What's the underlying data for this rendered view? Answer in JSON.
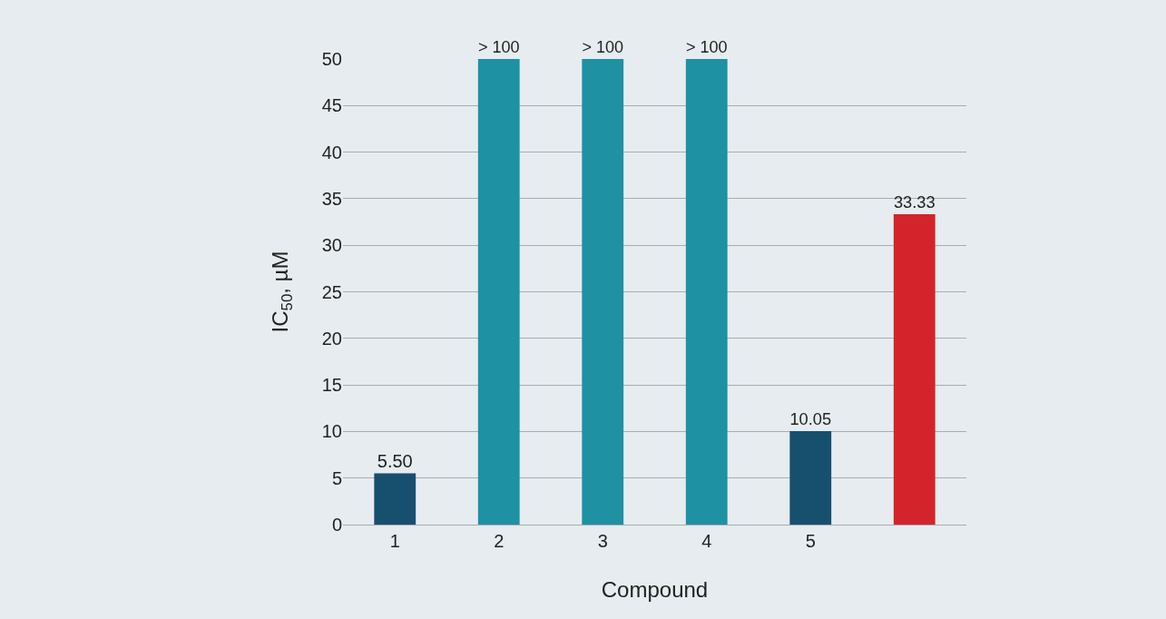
{
  "chart_data": {
    "type": "bar",
    "xlabel": "Compound",
    "ylabel": "IC$_{50}$, µM",
    "categories": [
      "1",
      "2",
      "3",
      "4",
      "5",
      null
    ],
    "values": [
      5.5,
      50,
      50,
      50,
      10.05,
      33.33
    ],
    "colors": [
      "#174f6e",
      "#1e91a3",
      "#1e91a3",
      "#1e91a3",
      "#174f6e",
      "#d4242b"
    ],
    "value_labels": [
      "5.50",
      "> 100",
      "> 100",
      "> 100",
      "10.05",
      "33.33"
    ],
    "ylim": [
      0,
      50
    ],
    "yticks": [
      0,
      5,
      10,
      15,
      20,
      25,
      30,
      35,
      40,
      45,
      50
    ],
    "grid": "y"
  }
}
